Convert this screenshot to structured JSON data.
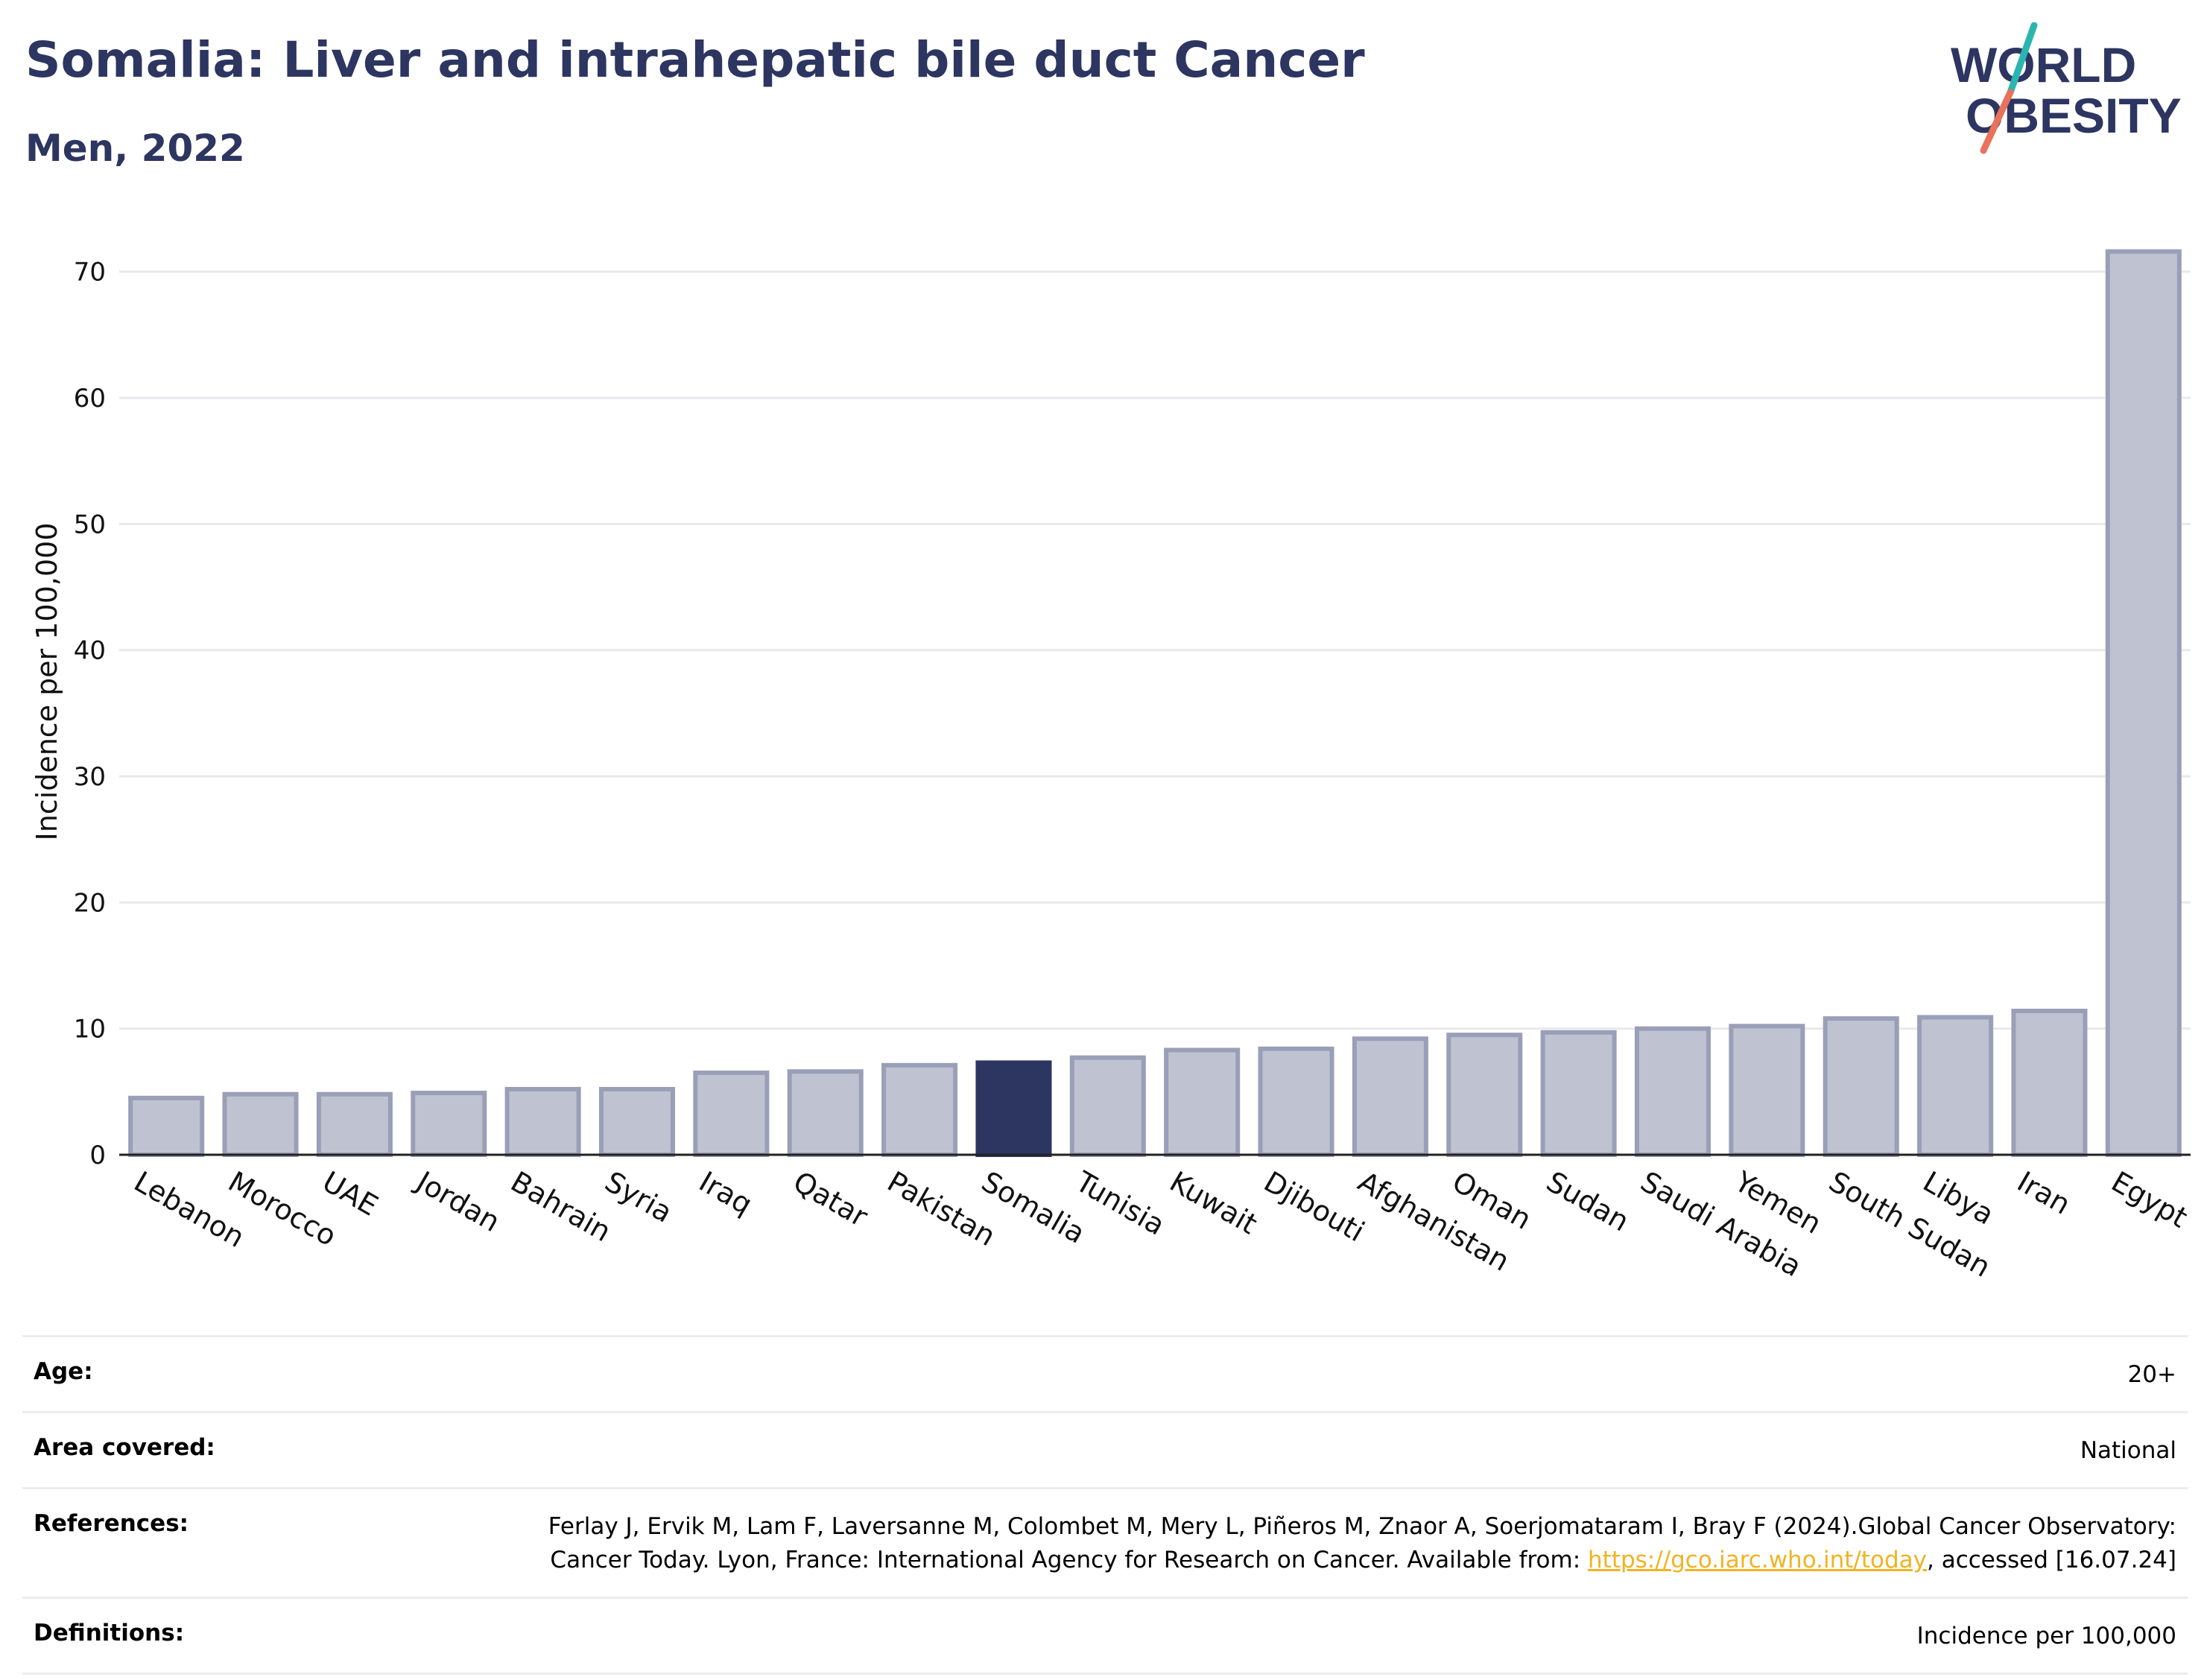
{
  "header": {
    "title": "Somalia: Liver and intrahepatic bile duct Cancer",
    "subtitle": "Men, 2022"
  },
  "logo": {
    "line1": "WORLD",
    "line2": "OBESITY",
    "accent_colors": [
      "#2bb5b0",
      "#e8735a"
    ]
  },
  "chart_data": {
    "type": "bar",
    "ylabel": "Incidence per 100,000",
    "xlabel": "",
    "ylim": [
      0,
      75
    ],
    "yticks": [
      0,
      10,
      20,
      30,
      40,
      50,
      60,
      70
    ],
    "grid": true,
    "highlight": "Somalia",
    "colors": {
      "default": "#bfc2d0",
      "default_border": "#9a9fb8",
      "highlight": "#2d3561"
    },
    "categories": [
      "Lebanon",
      "Morocco",
      "UAE",
      "Jordan",
      "Bahrain",
      "Syria",
      "Iraq",
      "Qatar",
      "Pakistan",
      "Somalia",
      "Tunisia",
      "Kuwait",
      "Djibouti",
      "Afghanistan",
      "Oman",
      "Sudan",
      "Saudi Arabia",
      "Yemen",
      "South Sudan",
      "Libya",
      "Iran",
      "Egypt"
    ],
    "values": [
      4.5,
      4.8,
      4.8,
      4.9,
      5.2,
      5.2,
      6.5,
      6.6,
      7.1,
      7.3,
      7.7,
      8.3,
      8.4,
      9.2,
      9.5,
      9.7,
      10.0,
      10.2,
      10.8,
      10.9,
      11.4,
      71.6
    ]
  },
  "meta": {
    "age": {
      "label": "Age:",
      "value": "20+"
    },
    "area": {
      "label": "Area covered:",
      "value": "National"
    },
    "references": {
      "label": "References:",
      "text1": "Ferlay J, Ervik M, Lam F, Laversanne M, Colombet M, Mery L, Piñeros M, Znaor A, Soerjomataram I, Bray F (2024).Global Cancer Observatory: Cancer Today. Lyon, France: International Agency for Research on Cancer. Available from: ",
      "link": "https://gco.iarc.who.int/today",
      "text2": ", accessed [16.07.24]"
    },
    "definitions": {
      "label": "Definitions:",
      "value": "Incidence per 100,000"
    }
  }
}
